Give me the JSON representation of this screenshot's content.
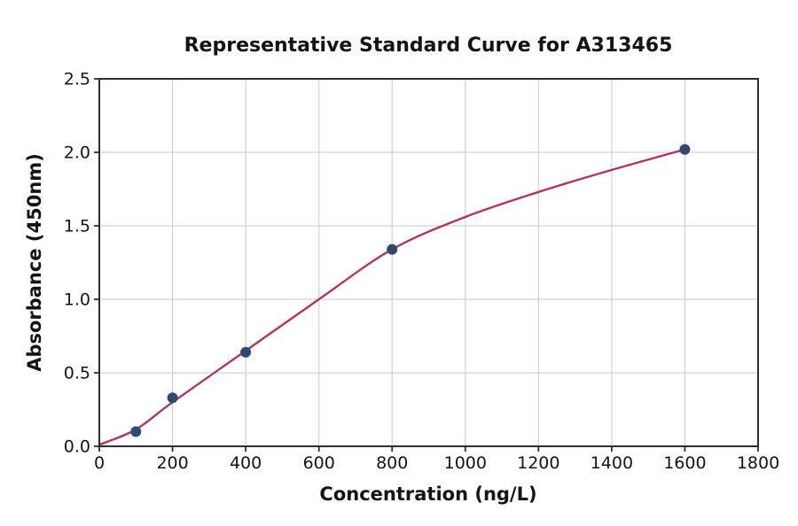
{
  "chart_data": {
    "type": "scatter",
    "title": "Representative Standard Curve for A313465",
    "xlabel": "Concentration (ng/L)",
    "ylabel": "Absorbance (450nm)",
    "xlim": [
      0,
      1800
    ],
    "ylim": [
      0,
      2.5
    ],
    "x_ticks": [
      0,
      200,
      400,
      600,
      800,
      1000,
      1200,
      1400,
      1600,
      1800
    ],
    "x_tick_labels": [
      "0",
      "200",
      "400",
      "600",
      "800",
      "1000",
      "1200",
      "1400",
      "1600",
      "1800"
    ],
    "y_ticks": [
      0,
      0.5,
      1.0,
      1.5,
      2.0,
      2.5
    ],
    "y_tick_labels": [
      "0.0",
      "0.5",
      "1.0",
      "1.5",
      "2.0",
      "2.5"
    ],
    "grid": true,
    "legend": "none",
    "series": [
      {
        "name": "standard-points",
        "type": "scatter",
        "x": [
          100,
          200,
          400,
          800,
          1600
        ],
        "y": [
          0.1,
          0.33,
          0.64,
          1.34,
          2.02
        ]
      },
      {
        "name": "4pl-fit-curve",
        "type": "line",
        "x": [
          0,
          100,
          200,
          400,
          600,
          800,
          1000,
          1200,
          1400,
          1600
        ],
        "y": [
          0.01,
          0.115,
          0.3,
          0.65,
          1.0,
          1.34,
          1.56,
          1.73,
          1.88,
          2.02
        ]
      }
    ],
    "colors": {
      "point": "#2f4a6e",
      "curve": "#b5345c",
      "grid": "#c9c9c9",
      "axis": "#2e2e2e",
      "text": "#141414",
      "background": "#ffffff"
    },
    "marker_radius": 6,
    "curve_width": 2.4
  }
}
